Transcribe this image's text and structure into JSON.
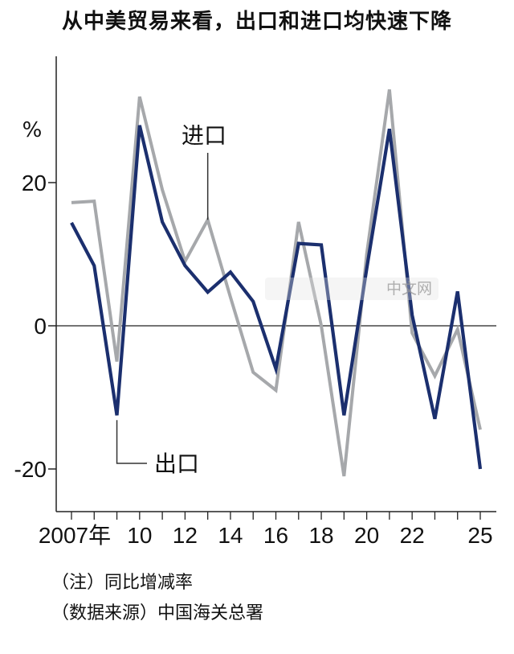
{
  "title": "从中美贸易来看，出口和进口均快速下降",
  "chart_data": {
    "type": "line",
    "unit_label": "%",
    "x": [
      2007,
      2008,
      2009,
      2010,
      2011,
      2012,
      2013,
      2014,
      2015,
      2016,
      2017,
      2018,
      2019,
      2020,
      2021,
      2022,
      2023,
      2024,
      2025
    ],
    "series": [
      {
        "name": "进口",
        "color": "#a6a8ab",
        "values": [
          17.2,
          17.4,
          -5,
          32,
          19,
          9,
          14.8,
          4,
          -6.5,
          -9,
          14.5,
          0,
          -21,
          10,
          33,
          -1,
          -7,
          -0.5,
          -14.5
        ]
      },
      {
        "name": "出口",
        "color": "#1b2f6e",
        "values": [
          14.4,
          8.4,
          -12.5,
          28,
          14.5,
          8.4,
          4.7,
          7.5,
          3.4,
          -6,
          11.5,
          11.3,
          -12.5,
          8,
          27.5,
          1.5,
          -13,
          4.8,
          -20
        ]
      }
    ],
    "xticks": [
      {
        "value": 2007,
        "label": "2007年"
      },
      {
        "value": 2010,
        "label": "10"
      },
      {
        "value": 2012,
        "label": "12"
      },
      {
        "value": 2014,
        "label": "14"
      },
      {
        "value": 2016,
        "label": "16"
      },
      {
        "value": 2018,
        "label": "18"
      },
      {
        "value": 2020,
        "label": "20"
      },
      {
        "value": 2022,
        "label": "22"
      },
      {
        "value": 2025,
        "label": "25"
      }
    ],
    "yticks": [
      {
        "value": 20,
        "label": "20"
      },
      {
        "value": 0,
        "label": "0"
      },
      {
        "value": -20,
        "label": "-20"
      }
    ],
    "xlim": [
      2006.9,
      2025.7
    ],
    "ylim": [
      -26,
      38
    ],
    "grid": false,
    "annotations": [
      {
        "text": "进口",
        "series": "进口",
        "point_x": 2013
      },
      {
        "text": "出口",
        "series": "出口",
        "point_x": 2009
      }
    ]
  },
  "notes": [
    "（注）同比增减率",
    "（数据来源）中国海关总署"
  ],
  "watermark": "中文网"
}
